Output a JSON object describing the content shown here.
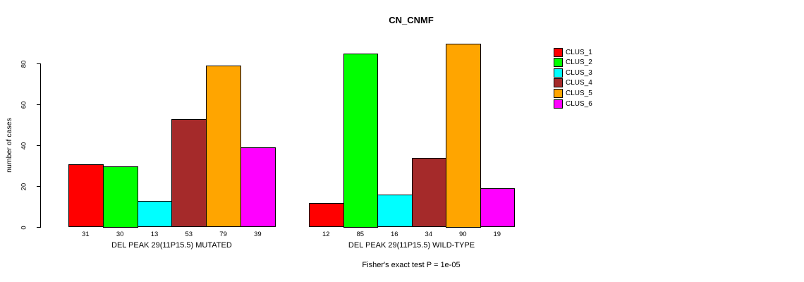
{
  "chart_data": {
    "type": "bar",
    "title": "CN_CNMF",
    "ylabel": "number of cases",
    "ylim": [
      0,
      90
    ],
    "yticks": [
      0,
      20,
      40,
      60,
      80
    ],
    "grid": false,
    "legend_position": "right",
    "legend": [
      "CLUS_1",
      "CLUS_2",
      "CLUS_3",
      "CLUS_4",
      "CLUS_5",
      "CLUS_6"
    ],
    "series_colors": [
      "#FF0000",
      "#00FF00",
      "#00FFFF",
      "#A52A2A",
      "#FFA500",
      "#FF00FF"
    ],
    "groups": [
      {
        "label": "DEL PEAK 29(11P15.5) MUTATED",
        "values": [
          31,
          30,
          13,
          53,
          79,
          39
        ]
      },
      {
        "label": "DEL PEAK 29(11P15.5) WILD-TYPE",
        "values": [
          12,
          85,
          16,
          34,
          90,
          19
        ]
      }
    ],
    "annotation": "Fisher's exact test P = 1e-05"
  }
}
